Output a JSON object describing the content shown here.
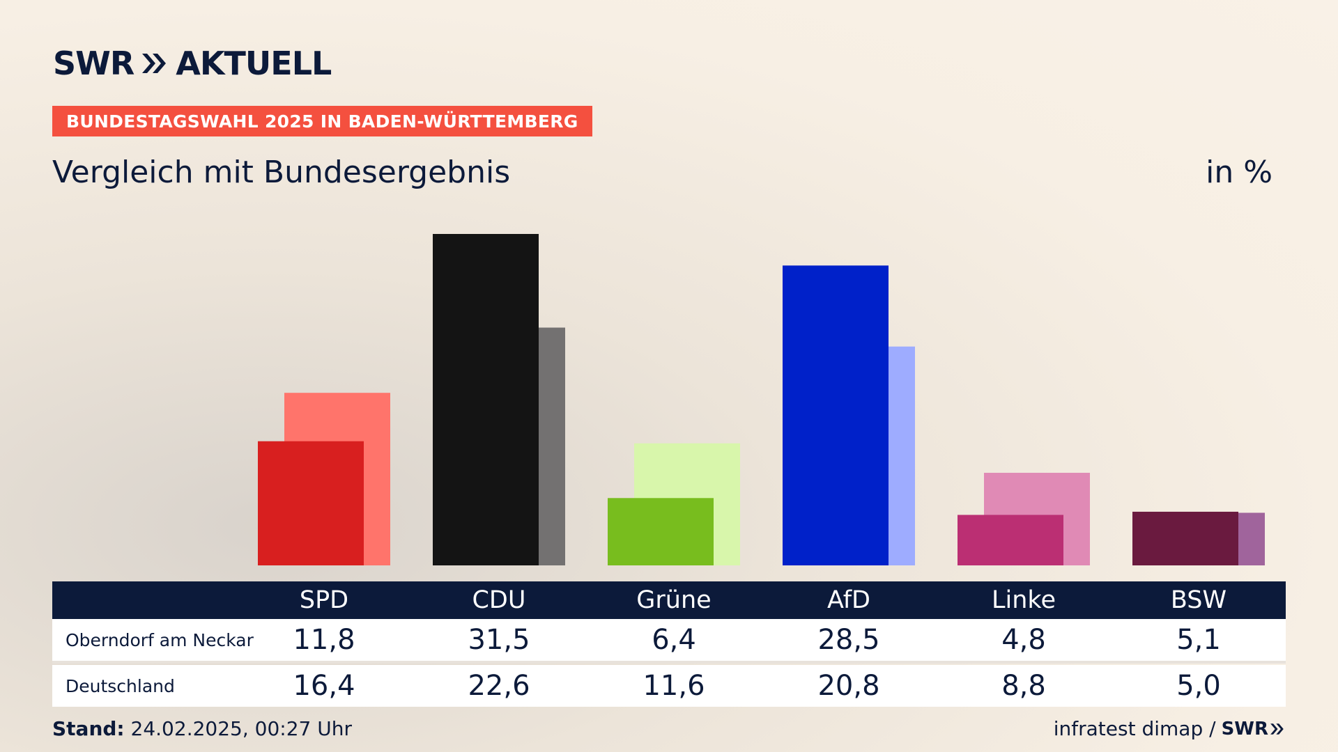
{
  "header": {
    "logo_text": "SWR",
    "logo_suffix": "AKTUELL",
    "tag": "BUNDESTAGSWAHL 2025 IN BADEN-WÜRTTEMBERG",
    "subtitle": "Vergleich mit Bundesergebnis",
    "unit": "in %"
  },
  "chart_data": {
    "type": "bar",
    "title": "Vergleich mit Bundesergebnis",
    "unit": "in %",
    "categories": [
      "SPD",
      "CDU",
      "Grüne",
      "AfD",
      "Linke",
      "BSW"
    ],
    "series": [
      {
        "name": "Oberndorf am Neckar",
        "values": [
          11.8,
          31.5,
          6.4,
          28.5,
          4.8,
          5.1
        ],
        "colors": [
          "#d81f1f",
          "#141414",
          "#78bd1e",
          "#0021c9",
          "#bb2f73",
          "#6a1a3f"
        ]
      },
      {
        "name": "Deutschland",
        "values": [
          16.4,
          22.6,
          11.6,
          20.8,
          8.8,
          5.0
        ],
        "colors": [
          "#ff746b",
          "#737171",
          "#d8f6ab",
          "#9eacff",
          "#e08ab5",
          "#a0649c"
        ]
      }
    ],
    "ylim": [
      0,
      31.5
    ]
  },
  "table": {
    "headers": [
      "SPD",
      "CDU",
      "Grüne",
      "AfD",
      "Linke",
      "BSW"
    ],
    "rows": [
      {
        "label": "Oberndorf am Neckar",
        "values": [
          "11,8",
          "31,5",
          "6,4",
          "28,5",
          "4,8",
          "5,1"
        ]
      },
      {
        "label": "Deutschland",
        "values": [
          "16,4",
          "22,6",
          "11,6",
          "20,8",
          "8,8",
          "5,0"
        ]
      }
    ]
  },
  "footer": {
    "stand_label": "Stand:",
    "stand_value": "24.02.2025, 00:27 Uhr",
    "source": "infratest dimap /",
    "source_logo": "SWR"
  }
}
